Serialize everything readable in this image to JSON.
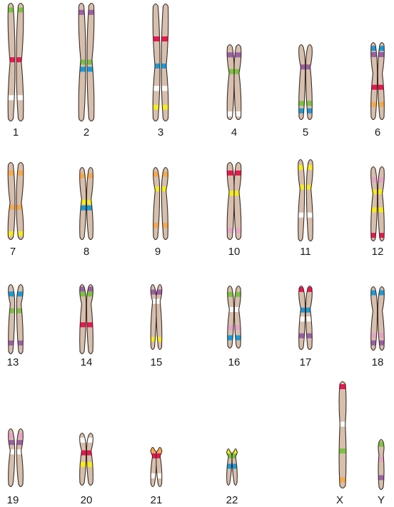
{
  "colors": {
    "body": "#d7bfae",
    "outline": "#3a2d26",
    "green": "#7cc242",
    "purple": "#9b5fa5",
    "red": "#e8174f",
    "blue": "#1b9ad6",
    "yellow": "#f6ec1c",
    "orange": "#f6a94c",
    "pink": "#e7a4c6",
    "white": "#ffffff"
  },
  "chromosomes": [
    {
      "label": "1",
      "bands": [
        [
          "green",
          0.06
        ],
        [
          "red",
          0.48
        ],
        [
          "white",
          0.8
        ]
      ]
    },
    {
      "label": "2",
      "bands": [
        [
          "purple",
          0.08
        ],
        [
          "green",
          0.5
        ],
        [
          "blue",
          0.56
        ]
      ]
    },
    {
      "label": "3",
      "bands": [
        [
          "red",
          0.3
        ],
        [
          "blue",
          0.53
        ],
        [
          "white",
          0.72
        ],
        [
          "yellow",
          0.88
        ]
      ]
    },
    {
      "label": "4",
      "bands": [
        [
          "purple",
          0.14
        ],
        [
          "green",
          0.36
        ],
        [
          "white",
          0.92
        ]
      ]
    },
    {
      "label": "5",
      "bands": [
        [
          "purple",
          0.3
        ],
        [
          "green",
          0.78
        ],
        [
          "blue",
          0.88
        ]
      ]
    },
    {
      "label": "6",
      "bands": [
        [
          "blue",
          0.08
        ],
        [
          "purple",
          0.16
        ],
        [
          "red",
          0.58
        ],
        [
          "orange",
          0.8
        ]
      ]
    },
    {
      "label": "7",
      "bands": [
        [
          "orange",
          0.14
        ],
        [
          "orange",
          0.58
        ],
        [
          "yellow",
          0.92
        ]
      ]
    },
    {
      "label": "8",
      "bands": [
        [
          "orange",
          0.12
        ],
        [
          "yellow",
          0.48
        ],
        [
          "blue",
          0.56
        ]
      ]
    },
    {
      "label": "9",
      "bands": [
        [
          "orange",
          0.1
        ],
        [
          "yellow",
          0.3
        ],
        [
          "orange",
          0.8
        ]
      ]
    },
    {
      "label": "10",
      "bands": [
        [
          "red",
          0.14
        ],
        [
          "yellow",
          0.4
        ],
        [
          "pink",
          0.88
        ]
      ]
    },
    {
      "label": "11",
      "bands": [
        [
          "yellow",
          0.1
        ],
        [
          "yellow",
          0.34
        ],
        [
          "white",
          0.68
        ]
      ]
    },
    {
      "label": "12",
      "bands": [
        [
          "pink",
          0.18
        ],
        [
          "yellow",
          0.34
        ],
        [
          "yellow",
          0.58
        ],
        [
          "red",
          0.92
        ]
      ]
    },
    {
      "label": "13",
      "bands": [
        [
          "blue",
          0.14
        ],
        [
          "green",
          0.38
        ],
        [
          "purple",
          0.84
        ]
      ]
    },
    {
      "label": "14",
      "bands": [
        [
          "purple",
          0.07
        ],
        [
          "green",
          0.14
        ],
        [
          "red",
          0.58
        ]
      ]
    },
    {
      "label": "15",
      "bands": [
        [
          "purple",
          0.12
        ],
        [
          "white",
          0.26
        ],
        [
          "yellow",
          0.84
        ]
      ]
    },
    {
      "label": "16",
      "bands": [
        [
          "green",
          0.14
        ],
        [
          "white",
          0.38
        ],
        [
          "pink",
          0.67
        ],
        [
          "blue",
          0.83
        ]
      ]
    },
    {
      "label": "17",
      "bands": [
        [
          "red",
          0.06
        ],
        [
          "blue",
          0.38
        ],
        [
          "white",
          0.52
        ],
        [
          "purple",
          0.78
        ]
      ]
    },
    {
      "label": "18",
      "bands": [
        [
          "blue",
          0.1
        ],
        [
          "pink",
          0.76
        ],
        [
          "purple",
          0.88
        ]
      ]
    },
    {
      "label": "19",
      "bands": [
        [
          "pink",
          0.12
        ],
        [
          "purple",
          0.24
        ],
        [
          "white",
          0.4
        ]
      ]
    },
    {
      "label": "20",
      "bands": [
        [
          "white",
          0.14
        ],
        [
          "red",
          0.38
        ],
        [
          "yellow",
          0.6
        ]
      ]
    },
    {
      "label": "21",
      "bands": [
        [
          "orange",
          0.08
        ],
        [
          "red",
          0.22
        ],
        [
          "white",
          0.72
        ]
      ]
    },
    {
      "label": "22",
      "bands": [
        [
          "yellow",
          0.1
        ],
        [
          "green",
          0.2
        ],
        [
          "blue",
          0.48
        ]
      ]
    },
    {
      "label": "X",
      "bands": [
        [
          "red",
          0.05
        ],
        [
          "white",
          0.4
        ],
        [
          "green",
          0.65
        ],
        [
          "orange",
          0.92
        ]
      ]
    },
    {
      "label": "Y",
      "bands": [
        [
          "green",
          0.1
        ],
        [
          "pink",
          0.4
        ],
        [
          "purple",
          0.76
        ]
      ]
    }
  ]
}
